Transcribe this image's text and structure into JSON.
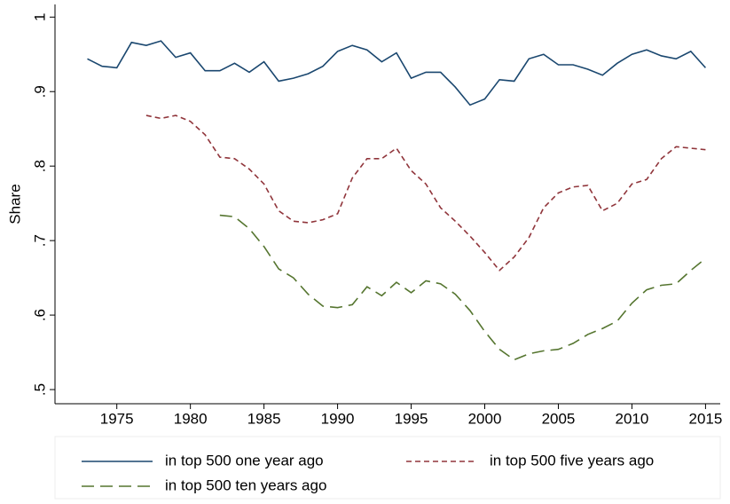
{
  "chart_data": {
    "type": "line",
    "y_label": "Share",
    "x": [
      1973,
      1974,
      1975,
      1976,
      1977,
      1978,
      1979,
      1980,
      1981,
      1982,
      1983,
      1984,
      1985,
      1986,
      1987,
      1988,
      1989,
      1990,
      1991,
      1992,
      1993,
      1994,
      1995,
      1996,
      1997,
      1998,
      1999,
      2000,
      2001,
      2002,
      2003,
      2004,
      2005,
      2006,
      2007,
      2008,
      2009,
      2010,
      2011,
      2012,
      2013,
      2014,
      2015
    ],
    "series": [
      {
        "name": "in top 500 one year ago",
        "color": "#1a476f",
        "dash": "solid",
        "values": [
          0.944,
          0.934,
          0.932,
          0.966,
          0.962,
          0.968,
          0.946,
          0.952,
          0.928,
          0.928,
          0.938,
          0.926,
          0.94,
          0.914,
          0.918,
          0.924,
          0.934,
          0.954,
          0.962,
          0.956,
          0.94,
          0.952,
          0.918,
          0.926,
          0.926,
          0.906,
          0.882,
          0.89,
          0.916,
          0.914,
          0.944,
          0.95,
          0.936,
          0.936,
          0.93,
          0.922,
          0.938,
          0.95,
          0.956,
          0.948,
          0.944,
          0.954,
          0.932
        ]
      },
      {
        "name": "in top 500 five years ago",
        "color": "#90353b",
        "dash": "short",
        "values": [
          null,
          null,
          null,
          null,
          0.868,
          0.864,
          0.868,
          0.86,
          0.842,
          0.812,
          0.81,
          0.796,
          0.776,
          0.74,
          0.726,
          0.724,
          0.728,
          0.736,
          0.784,
          0.81,
          0.81,
          0.824,
          0.794,
          0.776,
          0.744,
          0.726,
          0.706,
          0.684,
          0.66,
          0.678,
          0.704,
          0.744,
          0.764,
          0.772,
          0.774,
          0.74,
          0.75,
          0.776,
          0.782,
          0.81,
          0.826,
          0.824,
          0.822
        ]
      },
      {
        "name": "in top 500 ten years ago",
        "color": "#55752f",
        "dash": "long",
        "values": [
          null,
          null,
          null,
          null,
          null,
          null,
          null,
          null,
          null,
          0.734,
          0.732,
          0.716,
          0.692,
          0.662,
          0.65,
          0.628,
          0.612,
          0.61,
          0.614,
          0.638,
          0.626,
          0.644,
          0.63,
          0.646,
          0.642,
          0.628,
          0.606,
          0.578,
          0.554,
          0.54,
          0.548,
          0.552,
          0.554,
          0.562,
          0.574,
          0.582,
          0.592,
          0.616,
          0.634,
          0.64,
          0.642,
          0.66,
          0.676
        ]
      }
    ],
    "xlim": [
      1970.8,
      2016
    ],
    "xticks": [
      1975,
      1980,
      1985,
      1990,
      1995,
      2000,
      2005,
      2010,
      2015
    ],
    "ylim": [
      0.481,
      1.017
    ],
    "yticks": [
      {
        "value": 0.5,
        "label": ".5"
      },
      {
        "value": 0.6,
        "label": ".6"
      },
      {
        "value": 0.7,
        "label": ".7"
      },
      {
        "value": 0.8,
        "label": ".8"
      },
      {
        "value": 0.9,
        "label": ".9"
      },
      1
    ],
    "grid": false,
    "legend": "bottom"
  }
}
